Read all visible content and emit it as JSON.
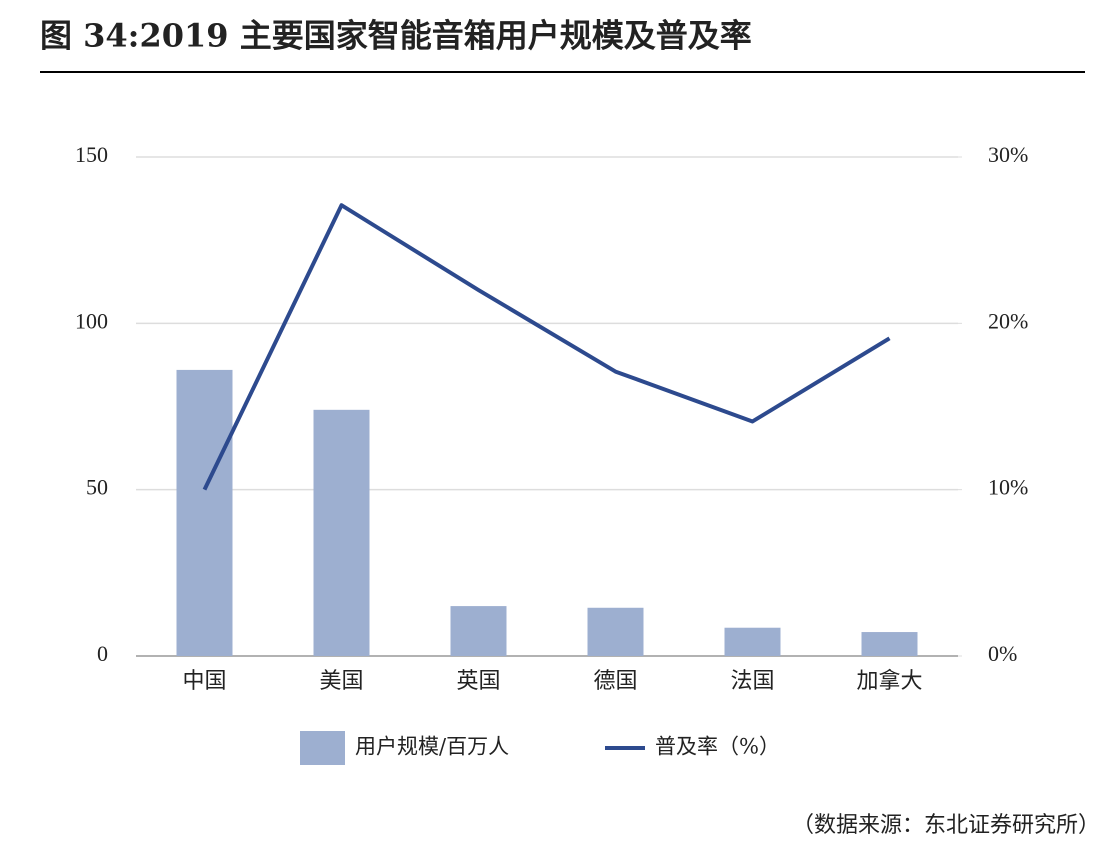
{
  "chart_data": {
    "type": "bar-line",
    "title": "图 34:2019 主要国家智能音箱用户规模及普及率",
    "source": "（数据来源：东北证券研究所）",
    "categories": [
      "中国",
      "美国",
      "英国",
      "德国",
      "法国",
      "加拿大"
    ],
    "series": [
      {
        "name": "用户规模/百万人",
        "type": "bar",
        "color": "#9dafd0",
        "values": [
          86,
          74,
          15,
          14.5,
          8.5,
          7.2
        ]
      },
      {
        "name": "普及率（%）",
        "type": "line",
        "color": "#2d4a8e",
        "axis": "y2",
        "values": [
          10,
          27.1,
          22,
          17.1,
          14.1,
          19.1
        ]
      }
    ],
    "ylim": [
      0,
      150
    ],
    "yticks": [
      0,
      50,
      100,
      150
    ],
    "y2lim": [
      0,
      30
    ],
    "y2ticks": [
      {
        "value": 0,
        "label": "0%"
      },
      {
        "value": 10,
        "label": "10%"
      },
      {
        "value": 20,
        "label": "20%"
      },
      {
        "value": 30,
        "label": "30%"
      }
    ],
    "grid": true
  }
}
